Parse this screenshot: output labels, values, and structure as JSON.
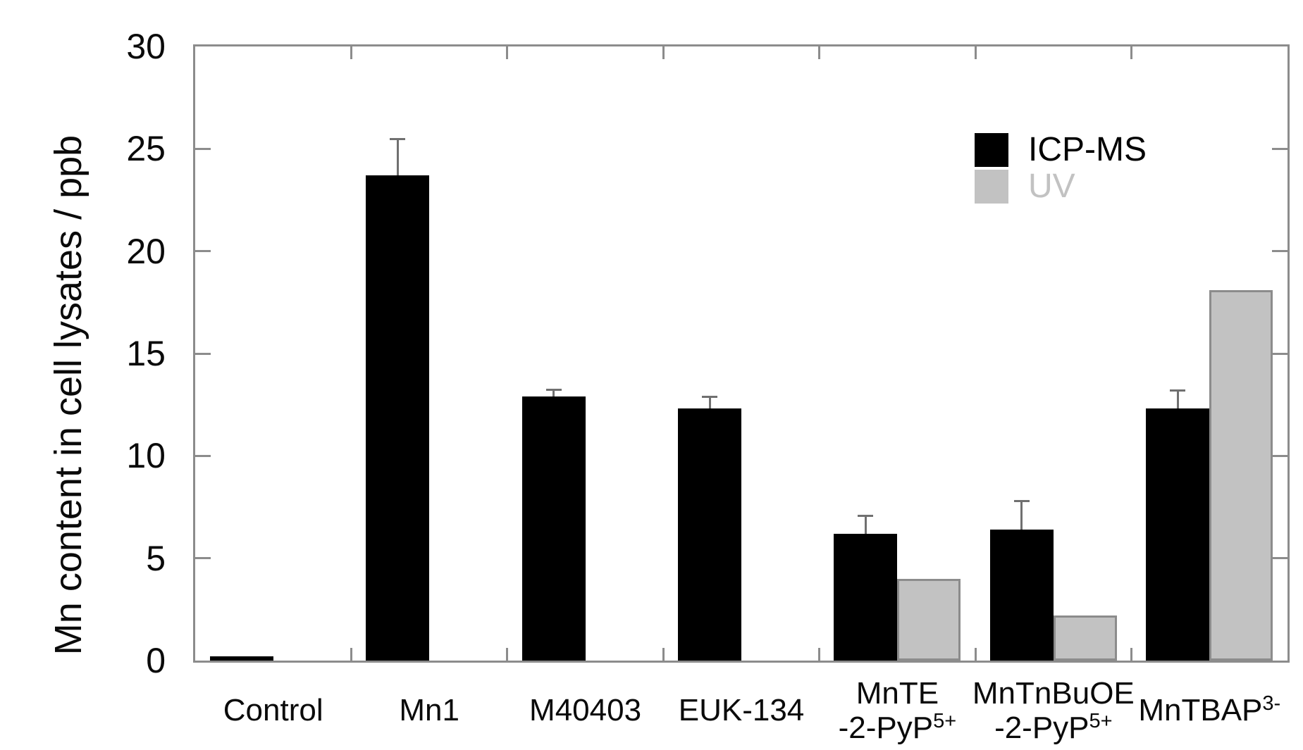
{
  "chart_data": {
    "type": "bar",
    "title": "",
    "xlabel": "",
    "ylabel": "Mn content in cell lysates / ppb",
    "ylim": [
      0,
      30
    ],
    "yticks": [
      0,
      5,
      10,
      15,
      20,
      25,
      30
    ],
    "grid": false,
    "legend_position": "upper-right-inside",
    "frame": "full-box-with-mirrored-inward-ticks",
    "categories": [
      {
        "label": "Control",
        "lines": [
          [
            {
              "text": "Control"
            }
          ]
        ]
      },
      {
        "label": "Mn1",
        "lines": [
          [
            {
              "text": "Mn1"
            }
          ]
        ]
      },
      {
        "label": "M40403",
        "lines": [
          [
            {
              "text": "M40403"
            }
          ]
        ]
      },
      {
        "label": "EUK-134",
        "lines": [
          [
            {
              "text": "EUK-134"
            }
          ]
        ]
      },
      {
        "label": "MnTE-2-PyP5+",
        "lines": [
          [
            {
              "text": "MnTE"
            }
          ],
          [
            {
              "text": "-2-PyP"
            },
            {
              "text": "5+",
              "sup": true
            }
          ]
        ]
      },
      {
        "label": "MnTnBuOE-2-PyP5+",
        "lines": [
          [
            {
              "text": "MnTnBuOE"
            }
          ],
          [
            {
              "text": "-2-PyP"
            },
            {
              "text": "5+",
              "sup": true
            }
          ]
        ]
      },
      {
        "label": "MnTBAP3-",
        "lines": [
          [
            {
              "text": "MnTBAP"
            },
            {
              "text": "3-",
              "sup": true
            }
          ]
        ]
      }
    ],
    "series": [
      {
        "name": "ICP-MS",
        "color": "#000000",
        "values": [
          0.2,
          23.7,
          12.9,
          12.3,
          6.2,
          6.4,
          12.3
        ],
        "errors_plus": [
          null,
          1.8,
          0.35,
          0.6,
          0.9,
          1.4,
          0.9
        ]
      },
      {
        "name": "UV",
        "color": "#c2c2c2",
        "values": [
          null,
          null,
          null,
          null,
          4.0,
          2.2,
          18.1
        ],
        "errors_plus": [
          null,
          null,
          null,
          null,
          null,
          null,
          null
        ]
      }
    ],
    "colors": {
      "frame": "#8c8c8c",
      "error_bar": "#707070",
      "bar_border_gray": "#8c8c8c",
      "text": "#0a0a0a"
    }
  }
}
